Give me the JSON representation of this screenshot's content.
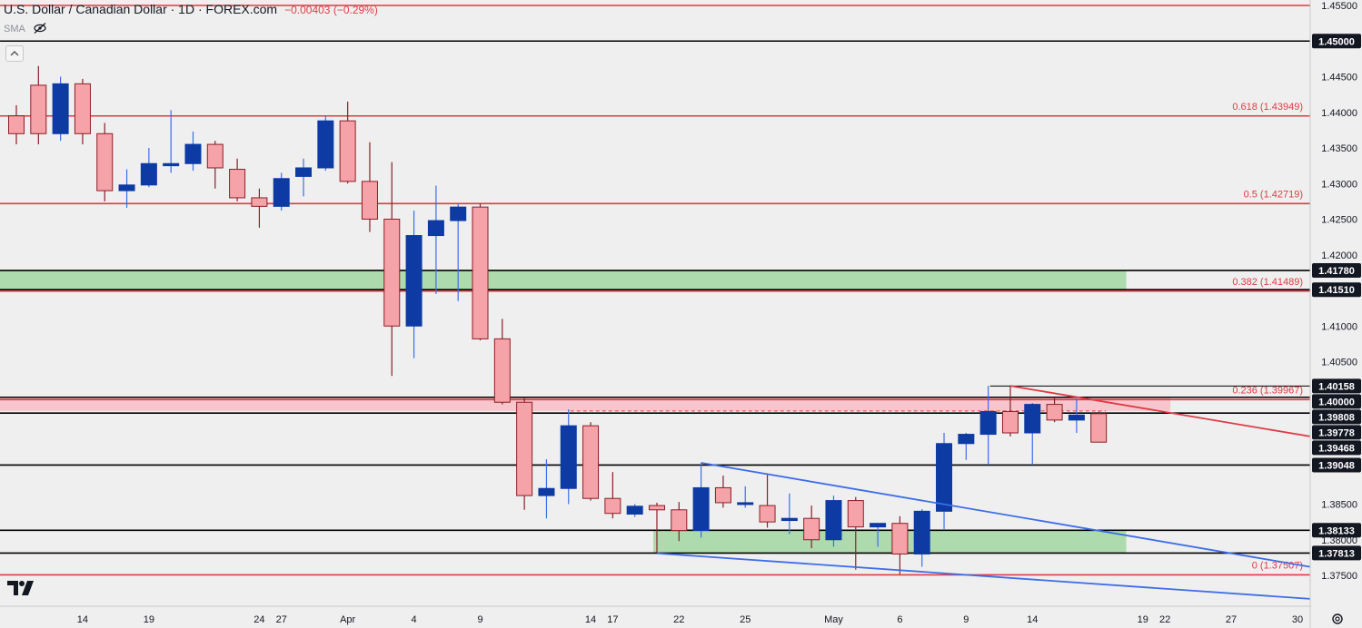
{
  "header": {
    "title": "U.S. Dollar / Canadian Dollar · 1D · FOREX.com",
    "change": "−0.00403 (−0.29%)",
    "indicator": "SMA"
  },
  "chart_data": {
    "type": "candlestick",
    "y_range": [
      1.373,
      1.4559
    ],
    "x_axis_labels": [
      {
        "date": "2024-03-14",
        "text": "14"
      },
      {
        "date": "2024-03-19",
        "text": "19"
      },
      {
        "date": "2024-03-24",
        "text": "24"
      },
      {
        "date": "2024-03-27",
        "text": "27"
      },
      {
        "date": "2024-04-01",
        "text": "Apr"
      },
      {
        "date": "2024-04-04",
        "text": "4"
      },
      {
        "date": "2024-04-09",
        "text": "9"
      },
      {
        "date": "2024-04-14",
        "text": "14"
      },
      {
        "date": "2024-04-17",
        "text": "17"
      },
      {
        "date": "2024-04-22",
        "text": "22"
      },
      {
        "date": "2024-04-25",
        "text": "25"
      },
      {
        "date": "2024-05-01",
        "text": "May"
      },
      {
        "date": "2024-05-06",
        "text": "6"
      },
      {
        "date": "2024-05-09",
        "text": "9"
      },
      {
        "date": "2024-05-14",
        "text": "14"
      },
      {
        "date": "2024-05-19",
        "text": "19"
      },
      {
        "date": "2024-05-22",
        "text": "22"
      },
      {
        "date": "2024-05-27",
        "text": "27"
      },
      {
        "date": "2024-05-30",
        "text": "30"
      }
    ],
    "y_tick_labels": [
      "1.37500",
      "1.38000",
      "1.38500",
      "1.39000",
      "1.39500",
      "1.40000",
      "1.40500",
      "1.41000",
      "1.41500",
      "1.42000",
      "1.42500",
      "1.43000",
      "1.43500",
      "1.44000",
      "1.44500",
      "1.45000",
      "1.45500"
    ],
    "candles": [
      {
        "date": "2024-03-11",
        "open": 1.4395,
        "high": 1.441,
        "low": 1.4355,
        "close": 1.437
      },
      {
        "date": "2024-03-12",
        "open": 1.4438,
        "high": 1.4465,
        "low": 1.4355,
        "close": 1.437
      },
      {
        "date": "2024-03-13",
        "open": 1.437,
        "high": 1.445,
        "low": 1.436,
        "close": 1.444
      },
      {
        "date": "2024-03-14",
        "open": 1.444,
        "high": 1.4447,
        "low": 1.4355,
        "close": 1.437
      },
      {
        "date": "2024-03-15",
        "open": 1.437,
        "high": 1.4385,
        "low": 1.4275,
        "close": 1.429
      },
      {
        "date": "2024-03-18",
        "open": 1.429,
        "high": 1.432,
        "low": 1.4266,
        "close": 1.4298
      },
      {
        "date": "2024-03-19",
        "open": 1.4298,
        "high": 1.435,
        "low": 1.4295,
        "close": 1.4328
      },
      {
        "date": "2024-03-20",
        "open": 1.4325,
        "high": 1.4403,
        "low": 1.4315,
        "close": 1.4328
      },
      {
        "date": "2024-03-21",
        "open": 1.4328,
        "high": 1.4373,
        "low": 1.4318,
        "close": 1.4355
      },
      {
        "date": "2024-03-22",
        "open": 1.4355,
        "high": 1.436,
        "low": 1.4293,
        "close": 1.4322
      },
      {
        "date": "2024-03-25",
        "open": 1.432,
        "high": 1.4335,
        "low": 1.4275,
        "close": 1.428
      },
      {
        "date": "2024-03-26",
        "open": 1.428,
        "high": 1.4293,
        "low": 1.4238,
        "close": 1.4268
      },
      {
        "date": "2024-03-27",
        "open": 1.4268,
        "high": 1.4315,
        "low": 1.4262,
        "close": 1.4307
      },
      {
        "date": "2024-03-28",
        "open": 1.431,
        "high": 1.4335,
        "low": 1.4282,
        "close": 1.4322
      },
      {
        "date": "2024-03-29",
        "open": 1.4322,
        "high": 1.4395,
        "low": 1.4318,
        "close": 1.4388
      },
      {
        "date": "2024-04-01",
        "open": 1.4388,
        "high": 1.4415,
        "low": 1.43,
        "close": 1.4303
      },
      {
        "date": "2024-04-02",
        "open": 1.4303,
        "high": 1.4358,
        "low": 1.4232,
        "close": 1.425
      },
      {
        "date": "2024-04-03",
        "open": 1.425,
        "high": 1.433,
        "low": 1.403,
        "close": 1.41
      },
      {
        "date": "2024-04-04",
        "open": 1.41,
        "high": 1.4262,
        "low": 1.4055,
        "close": 1.4227
      },
      {
        "date": "2024-04-05",
        "open": 1.4227,
        "high": 1.4297,
        "low": 1.4145,
        "close": 1.4248
      },
      {
        "date": "2024-04-08",
        "open": 1.4248,
        "high": 1.4272,
        "low": 1.4135,
        "close": 1.4267
      },
      {
        "date": "2024-04-09",
        "open": 1.4267,
        "high": 1.4272,
        "low": 1.408,
        "close": 1.4082
      },
      {
        "date": "2024-04-10",
        "open": 1.4082,
        "high": 1.411,
        "low": 1.399,
        "close": 1.3993
      },
      {
        "date": "2024-04-11",
        "open": 1.3993,
        "high": 1.4,
        "low": 1.3842,
        "close": 1.3862
      },
      {
        "date": "2024-04-12",
        "open": 1.3862,
        "high": 1.3913,
        "low": 1.383,
        "close": 1.3872
      },
      {
        "date": "2024-04-15",
        "open": 1.3872,
        "high": 1.3983,
        "low": 1.385,
        "close": 1.396
      },
      {
        "date": "2024-04-16",
        "open": 1.396,
        "high": 1.3965,
        "low": 1.3855,
        "close": 1.3858
      },
      {
        "date": "2024-04-17",
        "open": 1.3858,
        "high": 1.3895,
        "low": 1.383,
        "close": 1.3837
      },
      {
        "date": "2024-04-18",
        "open": 1.3836,
        "high": 1.385,
        "low": 1.3832,
        "close": 1.3847
      },
      {
        "date": "2024-04-19",
        "open": 1.3848,
        "high": 1.3852,
        "low": 1.3782,
        "close": 1.3842
      },
      {
        "date": "2024-04-22",
        "open": 1.3842,
        "high": 1.3853,
        "low": 1.3798,
        "close": 1.3813
      },
      {
        "date": "2024-04-23",
        "open": 1.3813,
        "high": 1.3908,
        "low": 1.3803,
        "close": 1.3873
      },
      {
        "date": "2024-04-24",
        "open": 1.3873,
        "high": 1.389,
        "low": 1.3845,
        "close": 1.3852
      },
      {
        "date": "2024-04-25",
        "open": 1.3852,
        "high": 1.3875,
        "low": 1.3845,
        "close": 1.3852
      },
      {
        "date": "2024-04-26",
        "open": 1.3848,
        "high": 1.3892,
        "low": 1.3817,
        "close": 1.3825
      },
      {
        "date": "2024-04-29",
        "open": 1.3827,
        "high": 1.3865,
        "low": 1.3808,
        "close": 1.383
      },
      {
        "date": "2024-04-30",
        "open": 1.383,
        "high": 1.3848,
        "low": 1.3788,
        "close": 1.38
      },
      {
        "date": "2024-05-01",
        "open": 1.38,
        "high": 1.3862,
        "low": 1.379,
        "close": 1.3855
      },
      {
        "date": "2024-05-02",
        "open": 1.3855,
        "high": 1.386,
        "low": 1.3758,
        "close": 1.3818
      },
      {
        "date": "2024-05-03",
        "open": 1.3818,
        "high": 1.3823,
        "low": 1.379,
        "close": 1.3823
      },
      {
        "date": "2024-05-06",
        "open": 1.3823,
        "high": 1.3833,
        "low": 1.3752,
        "close": 1.378
      },
      {
        "date": "2024-05-07",
        "open": 1.378,
        "high": 1.3843,
        "low": 1.3762,
        "close": 1.384
      },
      {
        "date": "2024-05-08",
        "open": 1.384,
        "high": 1.395,
        "low": 1.3815,
        "close": 1.3935
      },
      {
        "date": "2024-05-09",
        "open": 1.3935,
        "high": 1.395,
        "low": 1.3912,
        "close": 1.3948
      },
      {
        "date": "2024-05-10",
        "open": 1.3948,
        "high": 1.4016,
        "low": 1.3905,
        "close": 1.398
      },
      {
        "date": "2024-05-13",
        "open": 1.398,
        "high": 1.4015,
        "low": 1.3945,
        "close": 1.395
      },
      {
        "date": "2024-05-14",
        "open": 1.395,
        "high": 1.3992,
        "low": 1.3905,
        "close": 1.399
      },
      {
        "date": "2024-05-15",
        "open": 1.399,
        "high": 1.4,
        "low": 1.3965,
        "close": 1.3968
      },
      {
        "date": "2024-05-16",
        "open": 1.3968,
        "high": 1.4,
        "low": 1.395,
        "close": 1.3975
      },
      {
        "date": "2024-05-17",
        "open": 1.3977,
        "high": 1.398,
        "low": 1.3938,
        "close": 1.3937
      }
    ],
    "horizontal_lines": [
      {
        "price": 1.455,
        "color": "#e03a44",
        "label": ""
      },
      {
        "price": 1.45,
        "color": "#000000",
        "label": ""
      },
      {
        "price": 1.43949,
        "color": "#e03a44",
        "label": "0.618 (1.43949)"
      },
      {
        "price": 1.42719,
        "color": "#e03a44",
        "label": "0.5 (1.42719)"
      },
      {
        "price": 1.4178,
        "color": "#000000",
        "label": ""
      },
      {
        "price": 1.4151,
        "color": "#000000",
        "label": ""
      },
      {
        "price": 1.41489,
        "color": "#e03a44",
        "label": "0.382 (1.41489)"
      },
      {
        "price": 1.39967,
        "color": "#e03a44",
        "label": "0.236 (1.39967)"
      },
      {
        "price": 1.4,
        "color": "#000000",
        "label": ""
      },
      {
        "price": 1.39778,
        "color": "#000000",
        "label": ""
      },
      {
        "price": 1.39048,
        "color": "#000000",
        "label": ""
      },
      {
        "price": 1.38133,
        "color": "#000000",
        "label": ""
      },
      {
        "price": 1.37813,
        "color": "#000000",
        "label": ""
      },
      {
        "price": 1.37507,
        "color": "#e03a44",
        "label": "0 (1.37507)"
      }
    ],
    "zones": [
      {
        "top": 1.4178,
        "bottom": 1.4151,
        "from": "2024-03-11",
        "to": "2024-05-20",
        "color": "#a5d8a5"
      },
      {
        "top": 1.4,
        "bottom": 1.39808,
        "from": "2024-03-11",
        "to": "2024-05-22",
        "color": "#f7c1c8"
      },
      {
        "top": 1.38133,
        "bottom": 1.37813,
        "from": "2024-04-19",
        "to": "2024-05-20",
        "color": "#a5d8a5"
      }
    ],
    "trendlines": [
      {
        "from": {
          "date": "2024-04-19",
          "price": 1.3781
        },
        "to": {
          "date": "2024-05-31",
          "price": 1.3717
        },
        "color": "#3d6ee8"
      },
      {
        "from": {
          "date": "2024-04-23",
          "price": 1.3908
        },
        "to": {
          "date": "2024-05-31",
          "price": 1.3762
        },
        "color": "#3d6ee8"
      },
      {
        "from": {
          "date": "2024-05-13",
          "price": 1.4016
        },
        "to": {
          "date": "2024-05-31",
          "price": 1.3945
        },
        "color": "#e03a44"
      }
    ],
    "level_markers": [
      {
        "price": 1.39808,
        "from": "2024-04-15",
        "to": "2024-05-17",
        "style": "dashed",
        "color": "#e03a44"
      },
      {
        "price": 1.40158,
        "from": "2024-05-10",
        "to": "2024-05-31",
        "style": "solid",
        "color": "#000000"
      }
    ],
    "price_labels": [
      {
        "price": 1.45,
        "text": "1.45000"
      },
      {
        "price": 1.4178,
        "text": "1.41780"
      },
      {
        "price": 1.4151,
        "text": "1.41510"
      },
      {
        "price": 1.40158,
        "text": "1.40158"
      },
      {
        "price": 1.4,
        "text": "1.40000"
      },
      {
        "price": 1.39808,
        "text": "1.39808"
      },
      {
        "price": 1.39778,
        "text": "1.39778"
      },
      {
        "price": 1.39468,
        "text": "1.39468"
      },
      {
        "price": 1.39048,
        "text": "1.39048"
      },
      {
        "price": 1.38133,
        "text": "1.38133"
      },
      {
        "price": 1.37813,
        "text": "1.37813"
      }
    ],
    "colors": {
      "up_body": "#0d3aa3",
      "up_border": "#0d3aa3",
      "up_wick": "#3d6ee8",
      "down_body": "#f5a3a8",
      "down_border": "#8b1e26",
      "down_wick": "#8b1e26",
      "axis_text": "#131722",
      "label_bg": "#131722",
      "label_text": "#ffffff",
      "fib_text": "#e03a44"
    }
  }
}
